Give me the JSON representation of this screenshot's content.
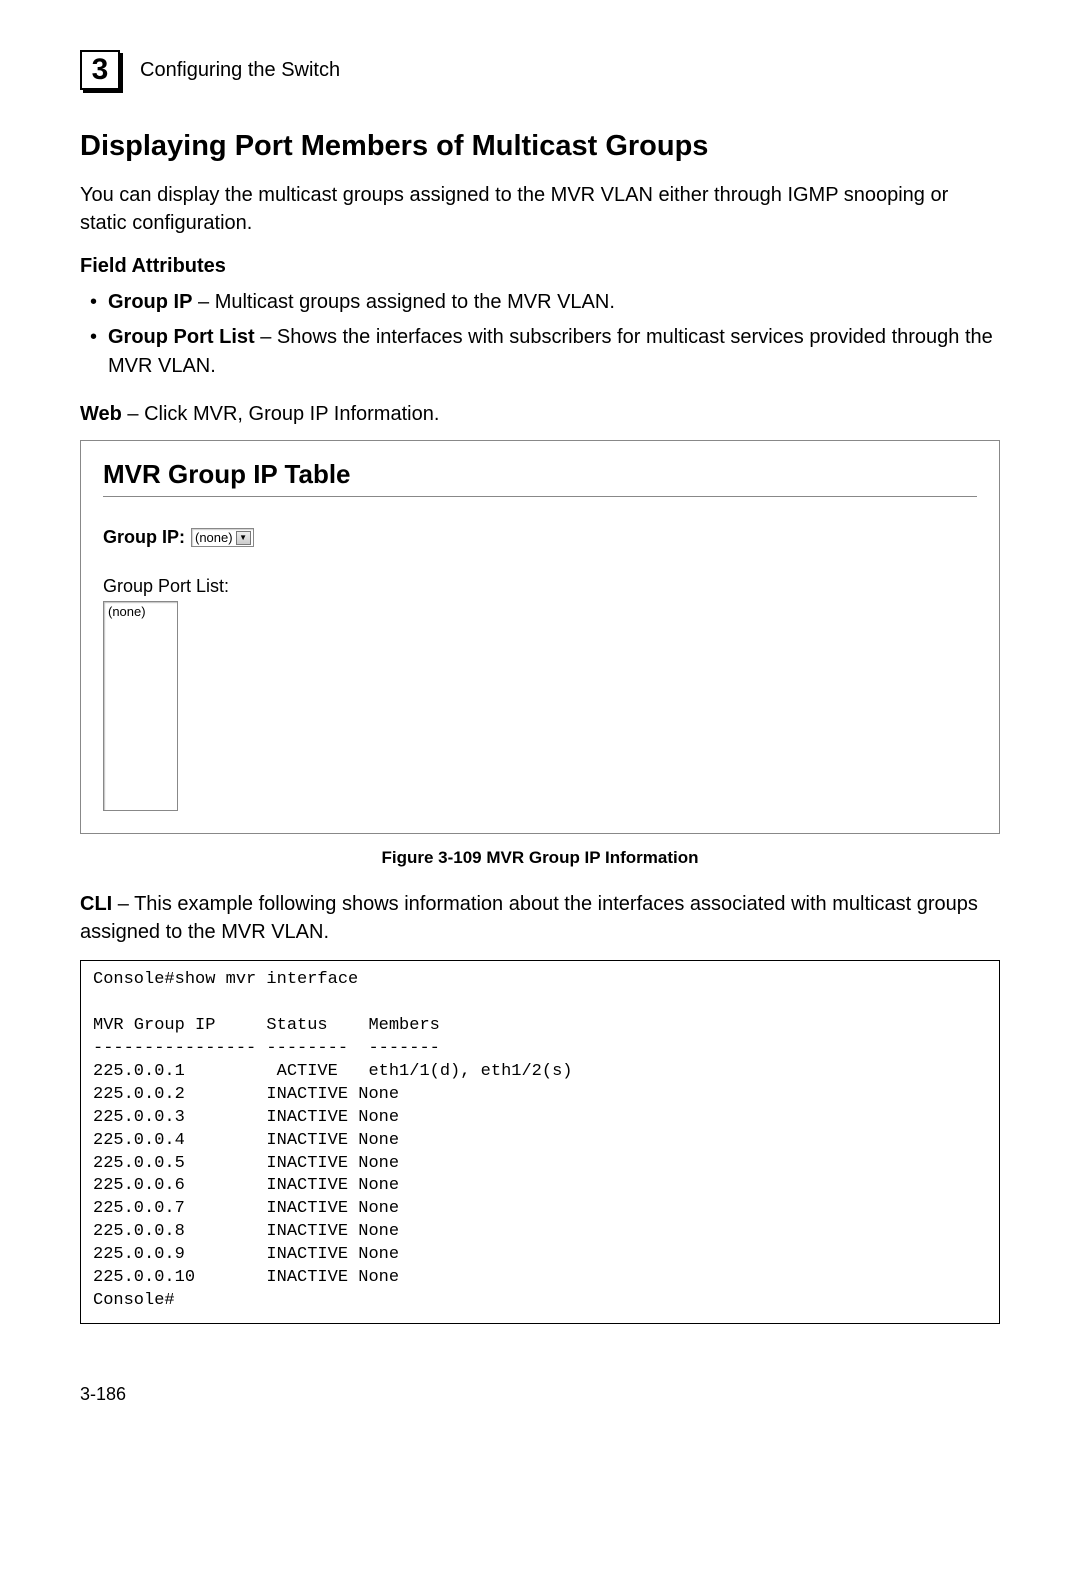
{
  "header": {
    "chapter_number": "3",
    "chapter_title": "Configuring the Switch"
  },
  "section": {
    "title": "Displaying Port Members of Multicast Groups",
    "intro": "You can display the multicast groups assigned to the MVR VLAN either through IGMP snooping or static configuration."
  },
  "field_attributes": {
    "heading": "Field Attributes",
    "items": [
      {
        "term": "Group IP",
        "desc": " – Multicast groups assigned to the MVR VLAN."
      },
      {
        "term": "Group Port List",
        "desc": " – Shows the interfaces with subscribers for multicast services provided through the MVR VLAN."
      }
    ]
  },
  "web_line": {
    "prefix": "Web",
    "rest": " – Click MVR, Group IP Information."
  },
  "screenshot": {
    "title": "MVR Group IP Table",
    "group_ip_label": "Group IP:",
    "dropdown_value": "(none)",
    "port_list_label": "Group Port List:",
    "listbox_value": "(none)"
  },
  "figure_caption": "Figure 3-109  MVR Group IP Information",
  "cli_intro": {
    "prefix": "CLI",
    "rest": " – This example following shows information about the interfaces associated with multicast groups assigned to the MVR VLAN."
  },
  "cli_output": "Console#show mvr interface\n\nMVR Group IP     Status    Members\n---------------- --------  -------\n225.0.0.1         ACTIVE   eth1/1(d), eth1/2(s)\n225.0.0.2        INACTIVE None\n225.0.0.3        INACTIVE None\n225.0.0.4        INACTIVE None\n225.0.0.5        INACTIVE None\n225.0.0.6        INACTIVE None\n225.0.0.7        INACTIVE None\n225.0.0.8        INACTIVE None\n225.0.0.9        INACTIVE None\n225.0.0.10       INACTIVE None\nConsole#",
  "page_number": "3-186"
}
